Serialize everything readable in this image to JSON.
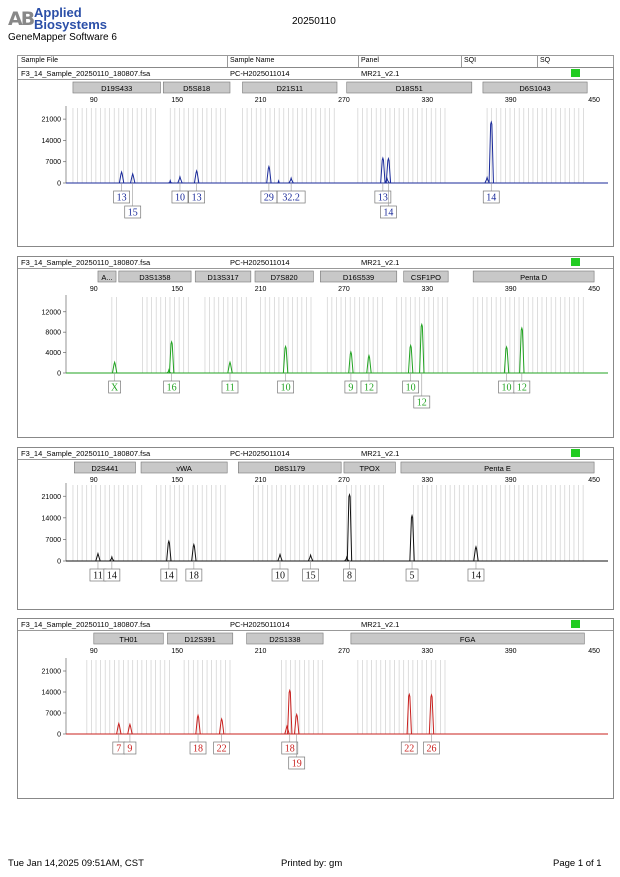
{
  "brand": {
    "mark": "AB",
    "name_line1": "Applied",
    "name_line2": "Biosystems",
    "software": "GeneMapper Software 6"
  },
  "run_date": "20250110",
  "header": {
    "sample_file": "Sample File",
    "sample_name": "Sample Name",
    "panel": "Panel",
    "sqi": "SQI",
    "sq": "SQ"
  },
  "footer": {
    "timestamp": "Tue Jan 14,2025 09:51AM, CST",
    "printed_by": "Printed by: gm",
    "page": "Page 1 of 1"
  },
  "colors": {
    "blue": "#1a2a9a",
    "green": "#21a321",
    "black": "#111111",
    "red": "#c8201e",
    "status_ok": "#22cc22"
  },
  "chart_data": [
    {
      "type": "line",
      "sample_file": "F3_14_Sample_20250110_180807.fsa",
      "sample_name": "PC-H2025011014",
      "panel": "MR21_v2.1",
      "color": "#1a2a9a",
      "x_ticks": [
        "90",
        "150",
        "210",
        "270",
        "330",
        "390",
        "450"
      ],
      "x_range": [
        70,
        460
      ],
      "y_ticks": [
        "21000",
        "14000",
        "7000",
        "0"
      ],
      "ylim": [
        0,
        24000
      ],
      "loci": [
        {
          "name": "D19S433",
          "start": 75,
          "end": 138
        },
        {
          "name": "D5S818",
          "start": 140,
          "end": 188
        },
        {
          "name": "D21S11",
          "start": 197,
          "end": 265
        },
        {
          "name": "D18S51",
          "start": 272,
          "end": 362
        },
        {
          "name": "D6S1043",
          "start": 370,
          "end": 445
        }
      ],
      "bins": [
        [
          75,
          135
        ],
        [
          145,
          185
        ],
        [
          197,
          265
        ],
        [
          280,
          345
        ],
        [
          373,
          444
        ]
      ],
      "peaks": [
        {
          "x": 110,
          "h": 3600
        },
        {
          "x": 118,
          "h": 3000
        },
        {
          "x": 145,
          "h": 800
        },
        {
          "x": 152,
          "h": 2000
        },
        {
          "x": 164,
          "h": 4000
        },
        {
          "x": 216,
          "h": 5400
        },
        {
          "x": 223,
          "h": 700
        },
        {
          "x": 232,
          "h": 1600
        },
        {
          "x": 298,
          "h": 8200
        },
        {
          "x": 301,
          "h": 1500
        },
        {
          "x": 302,
          "h": 8000
        },
        {
          "x": 373,
          "h": 1800
        },
        {
          "x": 376,
          "h": 20000
        }
      ],
      "labels": [
        {
          "x": 110,
          "text": "13",
          "row": 0
        },
        {
          "x": 118,
          "text": "15",
          "row": 1
        },
        {
          "x": 164,
          "text": "13",
          "row": 0
        },
        {
          "x": 152,
          "text": "10",
          "row": 0
        },
        {
          "x": 216,
          "text": "29",
          "row": 0
        },
        {
          "x": 232,
          "text": "32.2",
          "row": 0
        },
        {
          "x": 298,
          "text": "13",
          "row": 0
        },
        {
          "x": 302,
          "text": "14",
          "row": 1
        },
        {
          "x": 376,
          "text": "14",
          "row": 0
        }
      ]
    },
    {
      "type": "line",
      "sample_file": "F3_14_Sample_20250110_180807.fsa",
      "sample_name": "PC-H2025011014",
      "panel": "MR21_v2.1",
      "color": "#21a321",
      "x_ticks": [
        "90",
        "150",
        "210",
        "270",
        "330",
        "390",
        "450"
      ],
      "x_range": [
        70,
        460
      ],
      "y_ticks": [
        "12000",
        "8000",
        "4000",
        "0"
      ],
      "ylim": [
        0,
        14500
      ],
      "loci": [
        {
          "name": "A...",
          "start": 93,
          "end": 106
        },
        {
          "name": "D3S1358",
          "start": 108,
          "end": 160
        },
        {
          "name": "D13S317",
          "start": 163,
          "end": 203
        },
        {
          "name": "D7S820",
          "start": 206,
          "end": 248
        },
        {
          "name": "D16S539",
          "start": 253,
          "end": 308
        },
        {
          "name": "CSF1PO",
          "start": 313,
          "end": 345
        },
        {
          "name": "Penta D",
          "start": 363,
          "end": 450
        }
      ],
      "bins": [
        [
          103,
          108
        ],
        [
          125,
          160
        ],
        [
          170,
          200
        ],
        [
          210,
          248
        ],
        [
          258,
          300
        ],
        [
          308,
          345
        ],
        [
          363,
          445
        ]
      ],
      "peaks": [
        {
          "x": 105,
          "h": 2100
        },
        {
          "x": 144,
          "h": 600
        },
        {
          "x": 146,
          "h": 6100
        },
        {
          "x": 188,
          "h": 2100
        },
        {
          "x": 228,
          "h": 5200
        },
        {
          "x": 275,
          "h": 4100
        },
        {
          "x": 288,
          "h": 3400
        },
        {
          "x": 318,
          "h": 5400
        },
        {
          "x": 326,
          "h": 9500
        },
        {
          "x": 387,
          "h": 5100
        },
        {
          "x": 398,
          "h": 8800
        }
      ],
      "labels": [
        {
          "x": 105,
          "text": "X",
          "row": 0
        },
        {
          "x": 146,
          "text": "16",
          "row": 0
        },
        {
          "x": 188,
          "text": "11",
          "row": 0
        },
        {
          "x": 228,
          "text": "10",
          "row": 0
        },
        {
          "x": 275,
          "text": "9",
          "row": 0
        },
        {
          "x": 288,
          "text": "12",
          "row": 0
        },
        {
          "x": 318,
          "text": "10",
          "row": 0
        },
        {
          "x": 326,
          "text": "12",
          "row": 1
        },
        {
          "x": 387,
          "text": "10",
          "row": 0
        },
        {
          "x": 398,
          "text": "12",
          "row": 0
        }
      ]
    },
    {
      "type": "line",
      "sample_file": "F3_14_Sample_20250110_180807.fsa",
      "sample_name": "PC-H2025011014",
      "panel": "MR21_v2.1",
      "color": "#111111",
      "x_ticks": [
        "90",
        "150",
        "210",
        "270",
        "330",
        "390",
        "450"
      ],
      "x_range": [
        70,
        460
      ],
      "y_ticks": [
        "21000",
        "14000",
        "7000",
        "0"
      ],
      "ylim": [
        0,
        24000
      ],
      "loci": [
        {
          "name": "D2S441",
          "start": 76,
          "end": 120
        },
        {
          "name": "vWA",
          "start": 124,
          "end": 186
        },
        {
          "name": "D8S1179",
          "start": 194,
          "end": 268
        },
        {
          "name": "TPOX",
          "start": 270,
          "end": 307
        },
        {
          "name": "Penta E",
          "start": 311,
          "end": 450
        }
      ],
      "bins": [
        [
          75,
          125
        ],
        [
          135,
          186
        ],
        [
          205,
          266
        ],
        [
          272,
          300
        ],
        [
          320,
          445
        ]
      ],
      "peaks": [
        {
          "x": 93,
          "h": 2400
        },
        {
          "x": 103,
          "h": 1300
        },
        {
          "x": 144,
          "h": 6400
        },
        {
          "x": 162,
          "h": 5300
        },
        {
          "x": 224,
          "h": 2100
        },
        {
          "x": 246,
          "h": 1900
        },
        {
          "x": 272,
          "h": 1200
        },
        {
          "x": 274,
          "h": 21500
        },
        {
          "x": 319,
          "h": 14700
        },
        {
          "x": 365,
          "h": 4600
        }
      ],
      "labels": [
        {
          "x": 93,
          "text": "11",
          "row": 0
        },
        {
          "x": 103,
          "text": "14",
          "row": 0
        },
        {
          "x": 144,
          "text": "14",
          "row": 0
        },
        {
          "x": 162,
          "text": "18",
          "row": 0
        },
        {
          "x": 224,
          "text": "10",
          "row": 0
        },
        {
          "x": 246,
          "text": "15",
          "row": 0
        },
        {
          "x": 274,
          "text": "8",
          "row": 0
        },
        {
          "x": 319,
          "text": "5",
          "row": 0
        },
        {
          "x": 365,
          "text": "14",
          "row": 0
        }
      ]
    },
    {
      "type": "line",
      "sample_file": "F3_14_Sample_20250110_180807.fsa",
      "sample_name": "PC-H2025011014",
      "panel": "MR21_v2.1",
      "color": "#c8201e",
      "x_ticks": [
        "90",
        "150",
        "210",
        "270",
        "330",
        "390",
        "450"
      ],
      "x_range": [
        70,
        460
      ],
      "y_ticks": [
        "21000",
        "14000",
        "7000",
        "0"
      ],
      "ylim": [
        0,
        24000
      ],
      "loci": [
        {
          "name": "TH01",
          "start": 90,
          "end": 140
        },
        {
          "name": "D12S391",
          "start": 143,
          "end": 190
        },
        {
          "name": "D2S1338",
          "start": 200,
          "end": 255
        },
        {
          "name": "FGA",
          "start": 275,
          "end": 443
        }
      ],
      "bins": [
        [
          85,
          145
        ],
        [
          155,
          190
        ],
        [
          225,
          255
        ],
        [
          280,
          345
        ]
      ],
      "peaks": [
        {
          "x": 108,
          "h": 3500
        },
        {
          "x": 116,
          "h": 3200
        },
        {
          "x": 165,
          "h": 6200
        },
        {
          "x": 182,
          "h": 5000
        },
        {
          "x": 229,
          "h": 2600
        },
        {
          "x": 231,
          "h": 14500
        },
        {
          "x": 236,
          "h": 6500
        },
        {
          "x": 317,
          "h": 13200
        },
        {
          "x": 333,
          "h": 13000
        }
      ],
      "labels": [
        {
          "x": 108,
          "text": "7",
          "row": 0
        },
        {
          "x": 116,
          "text": "9",
          "row": 0
        },
        {
          "x": 165,
          "text": "18",
          "row": 0
        },
        {
          "x": 182,
          "text": "22",
          "row": 0
        },
        {
          "x": 231,
          "text": "18",
          "row": 0
        },
        {
          "x": 236,
          "text": "19",
          "row": 1
        },
        {
          "x": 317,
          "text": "22",
          "row": 0
        },
        {
          "x": 333,
          "text": "26",
          "row": 0
        }
      ]
    }
  ]
}
